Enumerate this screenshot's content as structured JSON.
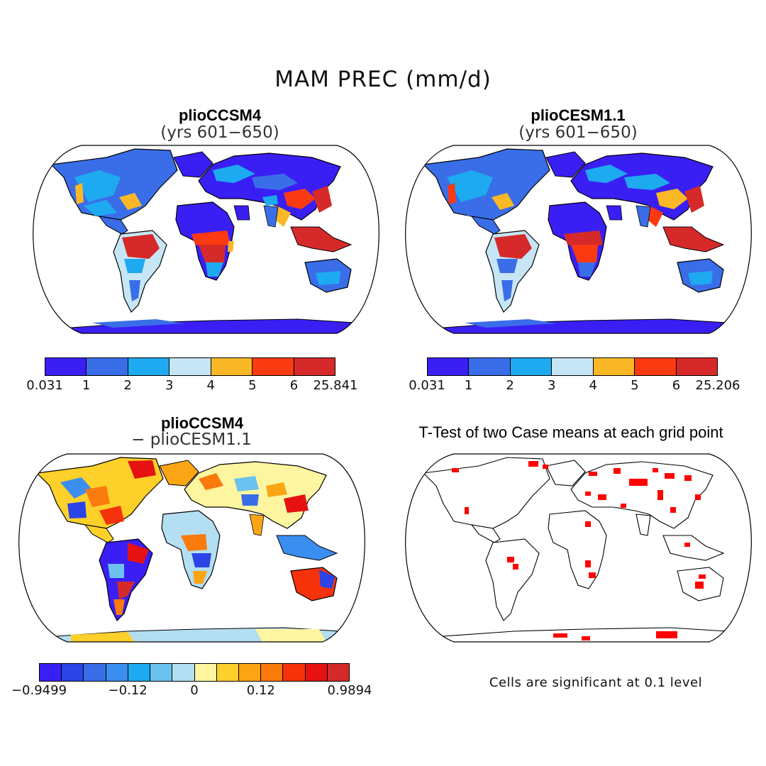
{
  "figure_title": "MAM PREC (mm/d)",
  "panels": {
    "top_left": {
      "title": "plioCCSM4",
      "subtitle": "(yrs 601−650)"
    },
    "top_right": {
      "title": "plioCESM1.1",
      "subtitle": "(yrs 601−650)"
    },
    "bottom_left": {
      "title": "plioCCSM4",
      "subtitle": "− plioCESM1.1"
    },
    "bottom_right": {
      "title": "T-Test of two Case means at each grid point",
      "note": "Cells are significant at 0.1 level"
    }
  },
  "colorbars": {
    "top_left": {
      "colors": [
        "#3a1ff5",
        "#3a6ee8",
        "#1eaaf0",
        "#c6e6f5",
        "#fbb826",
        "#fb3a12",
        "#d62a2a"
      ],
      "labels": [
        "0.031",
        "1",
        "2",
        "3",
        "4",
        "5",
        "6",
        "25.841"
      ]
    },
    "top_right": {
      "colors": [
        "#3a1ff5",
        "#3a6ee8",
        "#1eaaf0",
        "#c6e6f5",
        "#fbb826",
        "#fb3a12",
        "#d62a2a"
      ],
      "labels": [
        "0.031",
        "1",
        "2",
        "3",
        "4",
        "5",
        "6",
        "25.206"
      ]
    },
    "bottom_left": {
      "colors": [
        "#3a1ff5",
        "#2a44e8",
        "#3a6ee8",
        "#3a8ef0",
        "#1eaaf0",
        "#6cc2ef",
        "#b4def2",
        "#fdf5a0",
        "#fdd02a",
        "#fba514",
        "#fb7a0c",
        "#f5320a",
        "#e61212",
        "#d62a2a"
      ],
      "labels": [
        "−0.9499",
        "−0.12",
        "0",
        "0.12",
        "0.9894"
      ]
    }
  },
  "map_legend": {
    "significant_color": "#ff0000"
  }
}
